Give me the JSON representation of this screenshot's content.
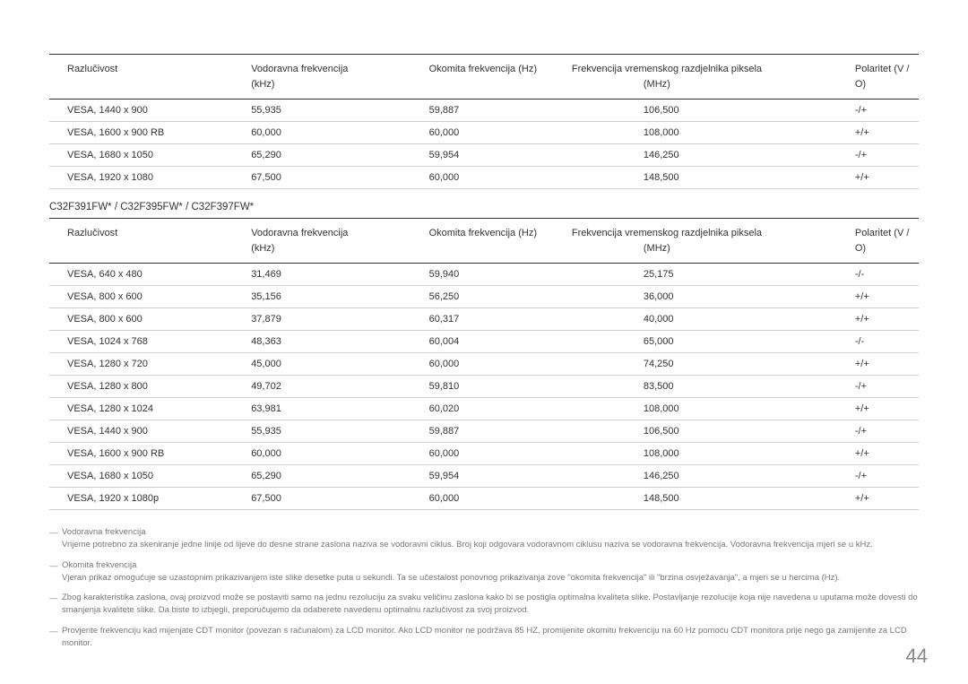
{
  "table_headers": {
    "resolution": "Razlučivost",
    "horizontal_freq": "Vodoravna frekvencija (kHz)",
    "vertical_freq": "Okomita frekvencija (Hz)",
    "pixel_clock_line1": "Frekvencija vremenskog razdjelnika piksela",
    "pixel_clock_line2": "(MHz)",
    "polarity": "Polaritet (V / O)"
  },
  "table1_rows": [
    {
      "res": "VESA, 1440 x 900",
      "hf": "55,935",
      "vf": "59,887",
      "pc": "106,500",
      "pol": "-/+"
    },
    {
      "res": "VESA, 1600 x 900 RB",
      "hf": "60,000",
      "vf": "60,000",
      "pc": "108,000",
      "pol": "+/+"
    },
    {
      "res": "VESA, 1680 x 1050",
      "hf": "65,290",
      "vf": "59,954",
      "pc": "146,250",
      "pol": "-/+"
    },
    {
      "res": "VESA, 1920 x 1080",
      "hf": "67,500",
      "vf": "60,000",
      "pc": "148,500",
      "pol": "+/+"
    }
  ],
  "section2_title": "C32F391FW* / C32F395FW* / C32F397FW*",
  "table2_rows": [
    {
      "res": "VESA, 640 x 480",
      "hf": "31,469",
      "vf": "59,940",
      "pc": "25,175",
      "pol": "-/-"
    },
    {
      "res": "VESA, 800 x 600",
      "hf": "35,156",
      "vf": "56,250",
      "pc": "36,000",
      "pol": "+/+"
    },
    {
      "res": "VESA, 800 x 600",
      "hf": "37,879",
      "vf": "60,317",
      "pc": "40,000",
      "pol": "+/+"
    },
    {
      "res": "VESA, 1024 x 768",
      "hf": "48,363",
      "vf": "60,004",
      "pc": "65,000",
      "pol": "-/-"
    },
    {
      "res": "VESA, 1280 x 720",
      "hf": "45,000",
      "vf": "60,000",
      "pc": "74,250",
      "pol": "+/+"
    },
    {
      "res": "VESA, 1280 x 800",
      "hf": "49,702",
      "vf": "59,810",
      "pc": "83,500",
      "pol": "-/+"
    },
    {
      "res": "VESA, 1280 x 1024",
      "hf": "63,981",
      "vf": "60,020",
      "pc": "108,000",
      "pol": "+/+"
    },
    {
      "res": "VESA, 1440 x 900",
      "hf": "55,935",
      "vf": "59,887",
      "pc": "106,500",
      "pol": "-/+"
    },
    {
      "res": "VESA, 1600 x 900 RB",
      "hf": "60,000",
      "vf": "60,000",
      "pc": "108,000",
      "pol": "+/+"
    },
    {
      "res": "VESA, 1680 x 1050",
      "hf": "65,290",
      "vf": "59,954",
      "pc": "146,250",
      "pol": "-/+"
    },
    {
      "res": "VESA, 1920 x 1080p",
      "hf": "67,500",
      "vf": "60,000",
      "pc": "148,500",
      "pol": "+/+"
    }
  ],
  "notes": [
    {
      "title": "Vodoravna frekvencija",
      "body": "Vrijeme potrebno za skeniranje jedne linije od lijeve do desne strane zaslona naziva se vodoravni ciklus. Broj koji odgovara vodoravnom ciklusu naziva se vodoravna frekvencija. Vodoravna frekvencija mjeri se u kHz."
    },
    {
      "title": "Okomita frekvencija",
      "body": "Vjeran prikaz omogućuje se uzastopnim prikazivanjem iste slike desetke puta u sekundi. Ta se učestalost ponovnog prikazivanja zove \"okomita frekvencija\" ili \"brzina osvježavanja\", a mjeri se u hercima (Hz)."
    },
    {
      "title": "",
      "body": "Zbog karakteristika zaslona, ovaj proizvod može se postaviti samo na jednu rezoluciju za svaku veličinu zaslona kako bi se postigla optimalna kvaliteta slike. Postavljanje rezolucije koja nije navedena u uputama može dovesti do smanjenja kvalitete slike. Da biste to izbjegli, preporučujemo da odaberete navedenu optimalnu razlučivost za svoj proizvod."
    },
    {
      "title": "",
      "body": "Provjerite frekvenciju kad mijenjate CDT monitor (povezan s računalom) za LCD monitor. Ako LCD monitor ne podržava 85 HZ, promijenite okomitu frekvenciju na 60 Hz pomoću CDT monitora prije nego ga zamijenite za LCD monitor."
    }
  ],
  "page_number": "44",
  "colors": {
    "text_primary": "#333333",
    "text_secondary": "#777777",
    "border_header": "#333333",
    "border_row": "#d0d0d0",
    "background": "#ffffff"
  }
}
